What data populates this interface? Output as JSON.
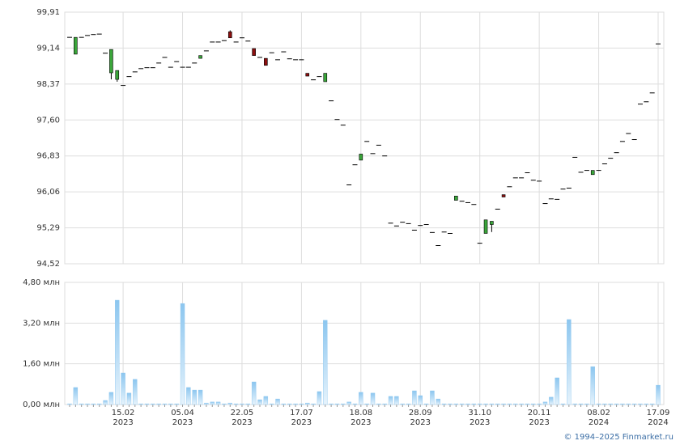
{
  "chart_data": [
    {
      "type": "candlestick",
      "open": [
        99.37,
        99.01,
        99.37,
        99.41,
        99.43,
        99.44,
        99.03,
        98.61,
        98.47,
        98.34,
        98.53,
        98.63,
        98.7,
        98.72,
        98.72,
        98.82,
        98.94,
        98.73,
        98.85,
        98.73,
        98.73,
        98.82,
        98.92,
        99.08,
        99.27,
        99.27,
        99.3,
        99.49,
        99.27,
        99.36,
        99.29,
        99.13,
        98.94,
        98.92,
        99.04,
        98.89,
        99.06,
        98.91,
        98.89,
        98.89,
        98.6,
        98.46,
        98.53,
        98.42,
        98.01,
        97.61,
        97.49,
        96.21,
        96.64,
        96.74,
        97.14,
        96.88,
        97.06,
        96.83,
        95.39,
        95.33,
        95.41,
        95.38,
        95.24,
        95.34,
        95.36,
        95.19,
        94.91,
        95.2,
        95.17,
        95.88,
        95.86,
        95.83,
        95.79,
        94.96,
        95.17,
        95.36,
        95.69,
        96.0,
        96.17,
        96.36,
        96.36,
        96.47,
        96.31,
        96.29,
        95.81,
        95.91,
        95.9,
        96.12,
        96.14,
        96.8,
        96.48,
        96.52,
        96.43,
        96.52,
        96.66,
        96.78,
        96.9,
        97.14,
        97.31,
        97.18,
        97.94,
        97.99,
        98.18,
        99.23
      ],
      "high": [
        99.37,
        99.37,
        99.37,
        99.41,
        99.43,
        99.44,
        99.03,
        99.11,
        98.66,
        98.34,
        98.53,
        98.63,
        98.7,
        98.72,
        98.72,
        98.82,
        98.94,
        98.73,
        98.85,
        98.73,
        98.73,
        98.82,
        98.98,
        99.08,
        99.27,
        99.27,
        99.3,
        99.52,
        99.27,
        99.36,
        99.29,
        99.13,
        98.94,
        98.92,
        99.04,
        98.89,
        99.06,
        98.91,
        98.89,
        98.89,
        98.6,
        98.46,
        98.53,
        98.6,
        98.01,
        97.61,
        97.49,
        96.21,
        96.64,
        96.87,
        97.14,
        96.88,
        97.06,
        96.83,
        95.39,
        95.33,
        95.41,
        95.38,
        95.24,
        95.34,
        95.36,
        95.19,
        94.91,
        95.2,
        95.17,
        95.97,
        95.86,
        95.83,
        95.79,
        94.96,
        95.46,
        95.43,
        95.69,
        96.0,
        96.17,
        96.36,
        96.36,
        96.47,
        96.31,
        96.29,
        95.81,
        95.91,
        95.9,
        96.12,
        96.14,
        96.8,
        96.48,
        96.52,
        96.52,
        96.52,
        96.66,
        96.78,
        96.9,
        97.14,
        97.31,
        97.18,
        97.94,
        97.99,
        98.18,
        99.23
      ],
      "low": [
        99.37,
        99.01,
        99.37,
        99.41,
        99.43,
        99.44,
        99.03,
        98.47,
        98.42,
        98.34,
        98.53,
        98.63,
        98.7,
        98.72,
        98.72,
        98.82,
        98.94,
        98.73,
        98.85,
        98.73,
        98.73,
        98.82,
        98.92,
        99.08,
        99.27,
        99.27,
        99.3,
        99.36,
        99.27,
        99.36,
        99.29,
        98.98,
        98.94,
        98.77,
        99.04,
        98.89,
        99.06,
        98.91,
        98.89,
        98.89,
        98.54,
        98.46,
        98.53,
        98.42,
        98.01,
        97.61,
        97.49,
        96.21,
        96.64,
        96.74,
        97.14,
        96.88,
        97.06,
        96.83,
        95.39,
        95.33,
        95.41,
        95.38,
        95.24,
        95.34,
        95.36,
        95.19,
        94.91,
        95.2,
        95.17,
        95.88,
        95.86,
        95.83,
        95.79,
        94.96,
        95.17,
        95.2,
        95.69,
        95.95,
        96.17,
        96.36,
        96.36,
        96.47,
        96.31,
        96.29,
        95.81,
        95.91,
        95.9,
        96.12,
        96.14,
        96.8,
        96.48,
        96.52,
        96.43,
        96.52,
        96.66,
        96.78,
        96.9,
        97.14,
        97.31,
        97.18,
        97.94,
        97.99,
        98.18,
        99.23
      ],
      "close": [
        99.37,
        99.37,
        99.37,
        99.41,
        99.43,
        99.44,
        99.03,
        99.11,
        98.66,
        98.34,
        98.53,
        98.63,
        98.7,
        98.72,
        98.72,
        98.82,
        98.94,
        98.73,
        98.85,
        98.73,
        98.73,
        98.82,
        98.98,
        99.08,
        99.27,
        99.27,
        99.3,
        99.36,
        99.27,
        99.36,
        99.29,
        98.98,
        98.94,
        98.77,
        99.04,
        98.89,
        99.06,
        98.91,
        98.89,
        98.89,
        98.54,
        98.46,
        98.53,
        98.6,
        98.01,
        97.61,
        97.49,
        96.21,
        96.64,
        96.87,
        97.14,
        96.88,
        97.06,
        96.83,
        95.39,
        95.33,
        95.41,
        95.38,
        95.24,
        95.34,
        95.36,
        95.19,
        94.91,
        95.2,
        95.17,
        95.97,
        95.86,
        95.83,
        95.79,
        94.96,
        95.46,
        95.43,
        95.69,
        95.95,
        96.17,
        96.36,
        96.36,
        96.47,
        96.31,
        96.29,
        95.81,
        95.91,
        95.9,
        96.12,
        96.14,
        96.8,
        96.48,
        96.52,
        96.52,
        96.52,
        96.66,
        96.78,
        96.9,
        97.14,
        97.31,
        97.18,
        97.94,
        97.99,
        98.18,
        99.23
      ],
      "up_color": "#3aa53a",
      "down_color": "#8b0f0f",
      "ylim": [
        94.52,
        99.91
      ],
      "yticks": [
        {
          "value": 94.52,
          "label": "94,52"
        },
        {
          "value": 95.29,
          "label": "95,29"
        },
        {
          "value": 96.06,
          "label": "96,06"
        },
        {
          "value": 96.83,
          "label": "96,83"
        },
        {
          "value": 97.6,
          "label": "97,60"
        },
        {
          "value": 98.37,
          "label": "98,37"
        },
        {
          "value": 99.14,
          "label": "99,14"
        },
        {
          "value": 99.91,
          "label": "99,91"
        }
      ],
      "grid": true
    },
    {
      "type": "bar",
      "categories": [
        null,
        null,
        null,
        null,
        null,
        null,
        null,
        null,
        null,
        "15.02\n2023",
        null,
        null,
        null,
        null,
        null,
        null,
        null,
        null,
        null,
        "05.04\n2023",
        null,
        null,
        null,
        null,
        null,
        null,
        null,
        null,
        null,
        "22.05\n2023",
        null,
        null,
        null,
        null,
        null,
        null,
        null,
        null,
        null,
        "17.07\n2023",
        null,
        null,
        null,
        null,
        null,
        null,
        null,
        null,
        null,
        "18.08\n2023",
        null,
        null,
        null,
        null,
        null,
        null,
        null,
        null,
        null,
        "28.09\n2023",
        null,
        null,
        null,
        null,
        null,
        null,
        null,
        null,
        null,
        "31.10\n2023",
        null,
        null,
        null,
        null,
        null,
        null,
        null,
        null,
        null,
        "20.11\n2023",
        null,
        null,
        null,
        null,
        null,
        null,
        null,
        null,
        null,
        "08.02\n2024",
        null,
        null,
        null,
        null,
        null,
        null,
        null,
        null,
        null,
        "17.09\n2024"
      ],
      "values": [
        0.03,
        0.67,
        0.03,
        0.03,
        0.03,
        0.03,
        0.16,
        0.48,
        4.1,
        1.24,
        0.45,
        0.99,
        0.03,
        0.03,
        0.03,
        0.03,
        0.03,
        0.03,
        0.03,
        3.97,
        0.67,
        0.57,
        0.57,
        0.06,
        0.1,
        0.1,
        0.03,
        0.06,
        0.03,
        0.03,
        0.03,
        0.89,
        0.19,
        0.32,
        0.03,
        0.22,
        0.03,
        0.03,
        0.03,
        0.03,
        0.06,
        0.03,
        0.51,
        3.31,
        0.03,
        0.03,
        0.03,
        0.1,
        0.03,
        0.48,
        0.03,
        0.45,
        0.03,
        0.03,
        0.32,
        0.32,
        0.03,
        0.03,
        0.54,
        0.35,
        0.03,
        0.54,
        0.22,
        0.03,
        0.03,
        0.03,
        0.03,
        0.03,
        0.03,
        0.03,
        0.03,
        0.03,
        0.03,
        0.03,
        0.03,
        0.03,
        0.03,
        0.03,
        0.03,
        0.03,
        0.1,
        0.29,
        1.05,
        0.03,
        3.34,
        0.03,
        0.03,
        0.03,
        1.49,
        0.03,
        0.03,
        0.03,
        0.03,
        0.03,
        0.03,
        0.03,
        0.03,
        0.03,
        0.03,
        0.76
      ],
      "color": "#8cc6ef",
      "ylim": [
        0,
        4.8
      ],
      "yticks": [
        {
          "value": 0,
          "label": "0,00 млн"
        },
        {
          "value": 1.6,
          "label": "1,60 млн"
        },
        {
          "value": 3.2,
          "label": "3,20 млн"
        },
        {
          "value": 4.8,
          "label": "4,80 млн"
        }
      ],
      "grid": true
    }
  ],
  "footer": "© 1994–2025 Finmarket.ru"
}
